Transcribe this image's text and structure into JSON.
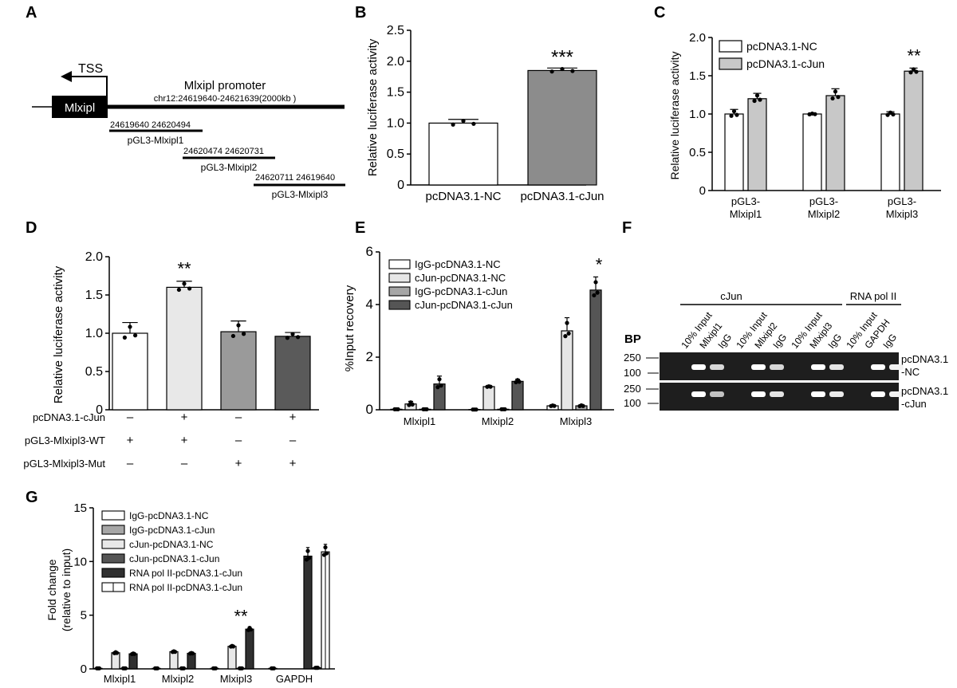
{
  "panels": {
    "A": {
      "letter": "A",
      "tss_label": "TSS",
      "gene_label": "Mlxipl",
      "promoter_title": "Mlxipl promoter",
      "promoter_coords": "chr12:24619640-24621639(2000kb )",
      "fragments": [
        {
          "coords": "24619640  24620494",
          "name": "pGL3-Mlxipl1"
        },
        {
          "coords": "24620474  24620731",
          "name": "pGL3-Mlxipl2"
        },
        {
          "coords": "24620711  24619640",
          "name": "pGL3-Mlxipl3"
        }
      ]
    },
    "B": {
      "letter": "B"
    },
    "C": {
      "letter": "C"
    },
    "D": {
      "letter": "D",
      "conditions": [
        {
          "label": "pcDNA3.1-cJun",
          "signs": [
            "–",
            "+",
            "–",
            "+"
          ]
        },
        {
          "label": "pGL3-Mlxipl3-WT",
          "signs": [
            "+",
            "+",
            "–",
            "–"
          ]
        },
        {
          "label": "pGL3-Mlxipl3-Mut",
          "signs": [
            "–",
            "–",
            "+",
            "+"
          ]
        }
      ]
    },
    "E": {
      "letter": "E"
    },
    "F": {
      "letter": "F",
      "group_cjun": "cJun",
      "group_pol": "RNA pol II",
      "bp_label": "BP",
      "lane_labels": [
        "10% Input",
        "Mlxipl1",
        "IgG",
        "10% Input",
        "Mlxipl2",
        "IgG",
        "10% Input",
        "Mlxipl3",
        "IgG",
        "10% Input",
        "GAPDH",
        "IgG"
      ],
      "markers": [
        "250",
        "100"
      ],
      "row_labels": [
        [
          "pcDNA3.1",
          "-NC"
        ],
        [
          "pcDNA3.1",
          "-cJun"
        ]
      ]
    },
    "G": {
      "letter": "G"
    }
  },
  "chart_data": [
    {
      "panel": "B",
      "type": "bar",
      "categories": [
        "pcDNA3.1-NC",
        "pcDNA3.1-cJun"
      ],
      "values": [
        1.0,
        1.85
      ],
      "errors": [
        0.06,
        0.04
      ],
      "colors": [
        "#ffffff",
        "#8c8c8c"
      ],
      "significance": [
        "",
        "***"
      ],
      "ylabel": "Relative luciferase activity",
      "ylim": [
        0,
        2.5
      ],
      "yticks": [
        "0",
        "0.5",
        "1.0",
        "1.5",
        "2.0",
        "2.5"
      ]
    },
    {
      "panel": "C",
      "type": "bar",
      "categories": [
        "pGL3-Mlxipl1",
        "pGL3-Mlxipl2",
        "pGL3-Mlxipl3"
      ],
      "series": [
        {
          "name": "pcDNA3.1-NC",
          "values": [
            1.0,
            1.0,
            1.0
          ],
          "errors": [
            0.06,
            0.01,
            0.03
          ],
          "color": "#ffffff"
        },
        {
          "name": "pcDNA3.1-cJun",
          "values": [
            1.2,
            1.24,
            1.56
          ],
          "errors": [
            0.07,
            0.09,
            0.04
          ],
          "color": "#c8c8c8"
        }
      ],
      "significance": [
        "",
        "",
        "**"
      ],
      "ylabel": "Relative luciferase activity",
      "ylim": [
        0,
        2.0
      ],
      "yticks": [
        "0",
        "0.5",
        "1.0",
        "1.5",
        "2.0"
      ]
    },
    {
      "panel": "D",
      "type": "bar",
      "values": [
        1.0,
        1.6,
        1.02,
        0.96
      ],
      "errors": [
        0.14,
        0.08,
        0.14,
        0.05
      ],
      "colors": [
        "#ffffff",
        "#e8e8e8",
        "#9a9a9a",
        "#5a5a5a"
      ],
      "significance": [
        "",
        "**",
        "",
        ""
      ],
      "ylabel": "Relative luciferase activity",
      "ylim": [
        0,
        2.0
      ],
      "yticks": [
        "0",
        "0.5",
        "1.0",
        "1.5",
        "2.0"
      ]
    },
    {
      "panel": "E",
      "type": "bar",
      "categories": [
        "Mlxipl1",
        "Mlxipl2",
        "Mlxipl3"
      ],
      "series": [
        {
          "name": "IgG-pcDNA3.1-NC",
          "values": [
            0.02,
            0.01,
            0.15
          ],
          "errors": [
            0.0,
            0.0,
            0.02
          ],
          "color": "#ffffff"
        },
        {
          "name": "cJun-pcDNA3.1-NC",
          "values": [
            0.22,
            0.88,
            3.0
          ],
          "errors": [
            0.1,
            0.02,
            0.5
          ],
          "color": "#e6e6e6"
        },
        {
          "name": "IgG-pcDNA3.1-cJun",
          "values": [
            0.02,
            0.02,
            0.15
          ],
          "errors": [
            0.0,
            0.0,
            0.03
          ],
          "color": "#a6a6a6"
        },
        {
          "name": "cJun-pcDNA3.1-cJun",
          "values": [
            0.98,
            1.08,
            4.55
          ],
          "errors": [
            0.3,
            0.08,
            0.5
          ],
          "color": "#555555"
        }
      ],
      "significance": [
        "",
        "",
        "*"
      ],
      "ylabel": "%Input recovery",
      "ylim": [
        0,
        6
      ],
      "yticks": [
        "0",
        "2",
        "4",
        "6"
      ]
    },
    {
      "panel": "G",
      "type": "bar",
      "categories": [
        "Mlxipl1",
        "Mlxipl2",
        "Mlxipl3",
        "GAPDH"
      ],
      "series": [
        {
          "name": "IgG-pcDNA3.1-NC",
          "values": [
            0.05,
            0.05,
            0.05,
            0.05
          ],
          "errors": [
            0,
            0,
            0,
            0
          ],
          "color": "#ffffff"
        },
        {
          "name": "IgG-pcDNA3.1-cJun",
          "values": [
            0,
            0,
            0,
            0
          ],
          "errors": [
            0,
            0,
            0,
            0
          ],
          "color": "#a6a6a6"
        },
        {
          "name": "cJun-pcDNA3.1-NC",
          "values": [
            1.5,
            1.6,
            2.1,
            0
          ],
          "errors": [
            0.08,
            0.06,
            0.06,
            0
          ],
          "color": "#e8e8e8"
        },
        {
          "name": "cJun-pcDNA3.1-cJun",
          "values": [
            0.05,
            0.05,
            0.05,
            0
          ],
          "errors": [
            0,
            0,
            0,
            0
          ],
          "color": "#555555"
        },
        {
          "name": "RNA pol II-pcDNA3.1-cJun",
          "values": [
            1.4,
            1.45,
            3.7,
            10.5
          ],
          "errors": [
            0.05,
            0.05,
            0.2,
            0.8
          ],
          "color": "#303030"
        },
        {
          "name": "RNA pol II-pcDNA3.1-cJun",
          "values": [
            0,
            0,
            0,
            0.1
          ],
          "errors": [
            0,
            0,
            0,
            0
          ],
          "color": "#ffffff"
        },
        {
          "name": "",
          "values": [
            0,
            0,
            0,
            10.9
          ],
          "errors": [
            0,
            0,
            0,
            0.7
          ],
          "color": "#ffffff"
        }
      ],
      "significance": [
        "",
        "",
        "**",
        ""
      ],
      "ylabel": "Fold change",
      "ylabel2": "(relative to input)",
      "ylim": [
        0,
        15
      ],
      "yticks": [
        "0",
        "5",
        "10",
        "15"
      ]
    }
  ]
}
